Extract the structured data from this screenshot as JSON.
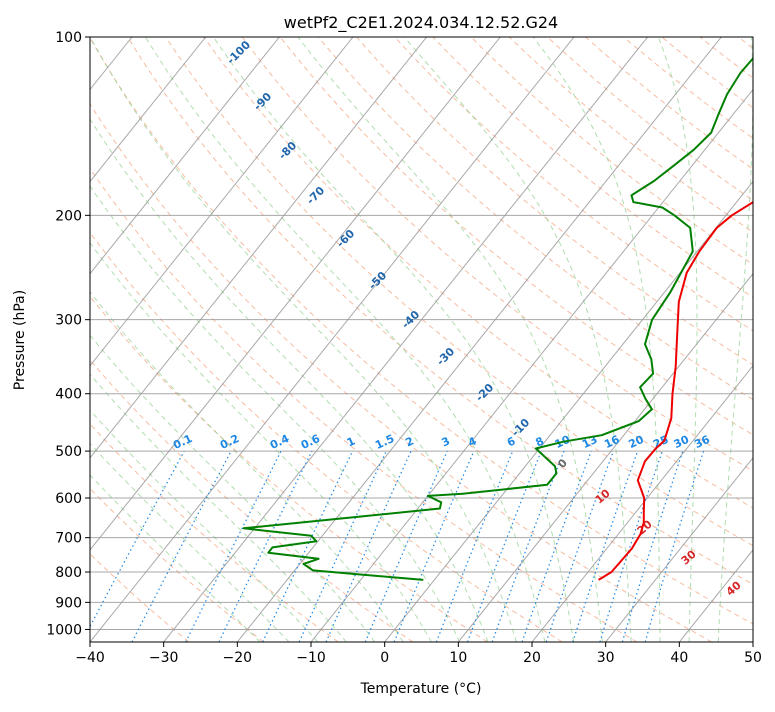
{
  "chart_data": {
    "type": "line",
    "subtype": "skew-T log-P",
    "title": "wetPf2_C2E1.2024.034.12.52.G24",
    "xlabel": "Temperature (°C)",
    "ylabel": "Pressure (hPa)",
    "xlim": [
      -40,
      50
    ],
    "ylim": [
      1050,
      100
    ],
    "y_scale": "log",
    "grid": true,
    "x_ticks": [
      -40,
      -30,
      -20,
      -10,
      0,
      10,
      20,
      30,
      40,
      50
    ],
    "y_ticks": [
      1000,
      900,
      800,
      700,
      600,
      500,
      400,
      300,
      200,
      100
    ],
    "colors": {
      "temperature": "#ee0000",
      "dewpoint": "#008000",
      "dry_adiabats": "#f4a582",
      "moist_adiabats": "#8fce8f",
      "mixing_ratio": "#1e88e5",
      "isotherms": "#999999",
      "labels_isotherm": "#2166ac",
      "labels_dry": "#d62728"
    },
    "series": [
      {
        "name": "Temperature",
        "color": "#ee0000",
        "points": [
          [
            22.3,
            825
          ],
          [
            23.2,
            800
          ],
          [
            23.4,
            730
          ],
          [
            23.0,
            690
          ],
          [
            22.2,
            660
          ],
          [
            20.9,
            630
          ],
          [
            19.6,
            600
          ],
          [
            16.8,
            560
          ],
          [
            15.7,
            520
          ],
          [
            15.8,
            495
          ],
          [
            16.1,
            480
          ],
          [
            14.6,
            440
          ],
          [
            12.1,
            400
          ],
          [
            9.6,
            360
          ],
          [
            6.5,
            320
          ],
          [
            3.0,
            280
          ],
          [
            0.9,
            250
          ],
          [
            0.3,
            230
          ],
          [
            0.1,
            210
          ],
          [
            0.8,
            200
          ],
          [
            3.0,
            185
          ],
          [
            4.5,
            170
          ],
          [
            4.6,
            155
          ],
          [
            5.3,
            145
          ],
          [
            6.1,
            135
          ],
          [
            6.4,
            125
          ],
          [
            6.8,
            115
          ],
          [
            7.3,
            105
          ],
          [
            7.4,
            100
          ]
        ]
      },
      {
        "name": "Dewpoint",
        "color": "#008000",
        "points": [
          [
            -1.5,
            825
          ],
          [
            -17.5,
            795
          ],
          [
            -19.5,
            775
          ],
          [
            -18.0,
            760
          ],
          [
            -25.5,
            742
          ],
          [
            -25.5,
            727
          ],
          [
            -20.2,
            710
          ],
          [
            -21.5,
            695
          ],
          [
            -31.5,
            675
          ],
          [
            -17.0,
            645
          ],
          [
            -7.0,
            625
          ],
          [
            -7.5,
            610
          ],
          [
            -10.0,
            595
          ],
          [
            -5.5,
            590
          ],
          [
            5.0,
            570
          ],
          [
            5.0,
            545
          ],
          [
            4.0,
            530
          ],
          [
            -0.5,
            495
          ],
          [
            2.5,
            482
          ],
          [
            7.0,
            470
          ],
          [
            10.5,
            445
          ],
          [
            11.0,
            425
          ],
          [
            9.0,
            408
          ],
          [
            7.0,
            390
          ],
          [
            7.3,
            370
          ],
          [
            5.5,
            350
          ],
          [
            3.0,
            330
          ],
          [
            1.3,
            300
          ],
          [
            0.8,
            270
          ],
          [
            -0.6,
            230
          ],
          [
            -3.5,
            210
          ],
          [
            -7.0,
            200
          ],
          [
            -9.5,
            194
          ],
          [
            -14.0,
            190
          ],
          [
            -15.0,
            185
          ],
          [
            -13.5,
            175
          ],
          [
            -12.5,
            165
          ],
          [
            -11.5,
            155
          ],
          [
            -11.0,
            145
          ],
          [
            -12.0,
            135
          ],
          [
            -13.0,
            125
          ],
          [
            -13.5,
            115
          ],
          [
            -13.3,
            105
          ],
          [
            -13.3,
            100
          ]
        ]
      }
    ],
    "isotherm_labels": [
      "-100",
      "-90",
      "-80",
      "-70",
      "-60",
      "-50",
      "-40",
      "-30",
      "-20",
      "-10",
      "0"
    ],
    "dry_adiabat_labels": [
      "10",
      "20",
      "30",
      "40"
    ],
    "mixing_ratio_labels": [
      "0.1",
      "0.2",
      "0.4",
      "0.6",
      "1",
      "1.5",
      "2",
      "3",
      "4",
      "6",
      "8",
      "10",
      "13",
      "16",
      "20",
      "25",
      "30",
      "36"
    ]
  }
}
